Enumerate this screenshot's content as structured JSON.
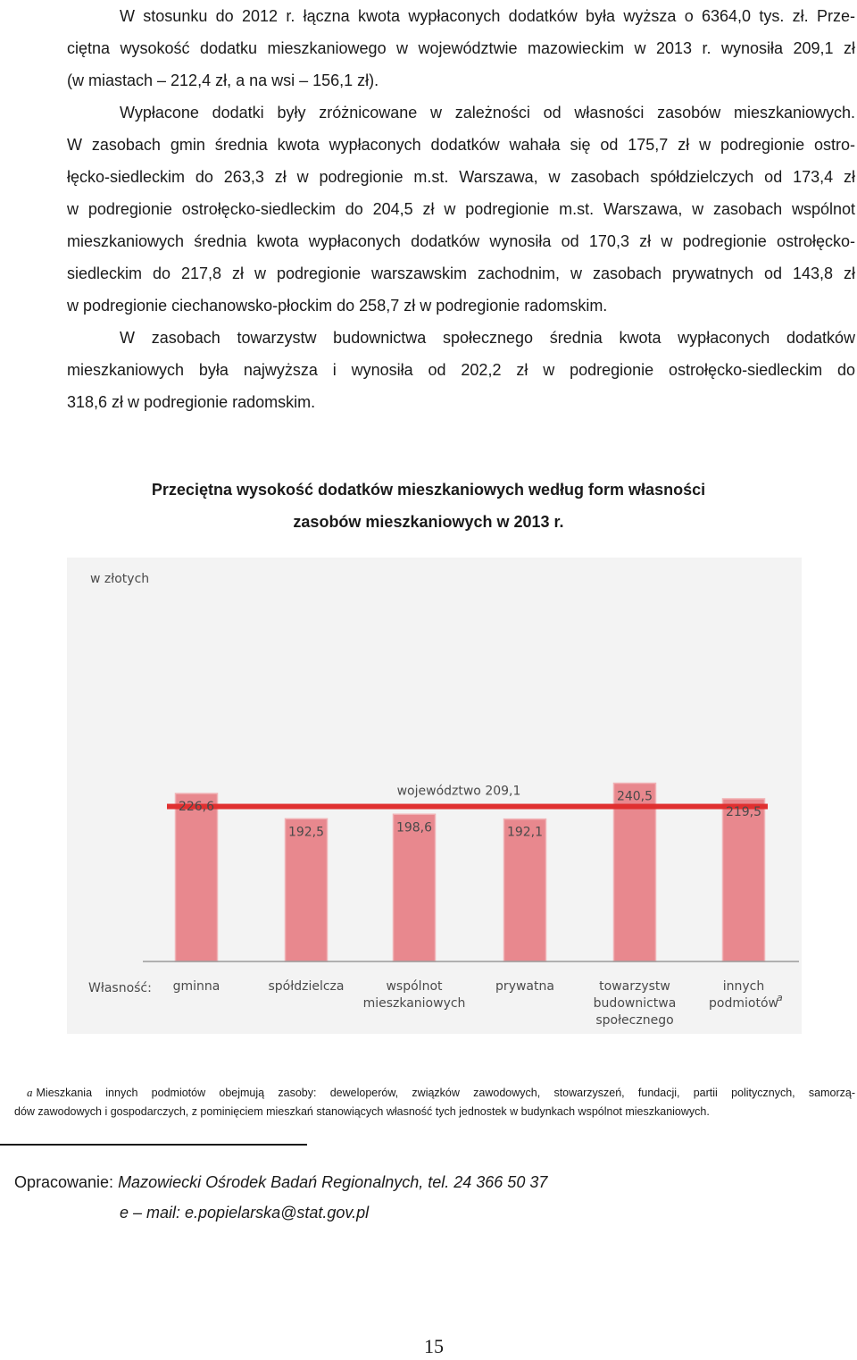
{
  "paragraphs": [
    {
      "lines": [
        "W stosunku do 2012 r. łączna kwota wypłaconych dodatków była wyższa o 6364,0 tys. zł. Prze-",
        "ciętna wysokość dodatku mieszkaniowego w województwie mazowieckim w 2013 r. wynosiła 209,1 zł",
        "(w miastach – 212,4 zł, a na wsi – 156,1 zł)."
      ]
    },
    {
      "lines": [
        "Wypłacone dodatki były zróżnicowane w zależności od własności zasobów mieszkaniowych.",
        "W zasobach gmin średnia kwota wypłaconych dodatków wahała się od 175,7 zł w podregionie ostro-",
        "łęcko-siedleckim do 263,3 zł w podregionie m.st. Warszawa, w zasobach spółdzielczych od 173,4 zł",
        "w podregionie ostrołęcko-siedleckim do 204,5 zł w podregionie m.st. Warszawa, w zasobach wspólnot",
        "mieszkaniowych średnia kwota wypłaconych dodatków wynosiła od 170,3 zł w podregionie ostrołęcko-",
        "siedleckim do 217,8 zł w podregionie warszawskim zachodnim, w zasobach prywatnych od 143,8 zł",
        "w podregionie ciechanowsko-płockim do 258,7 zł w podregionie radomskim."
      ]
    },
    {
      "lines": [
        "W zasobach towarzystw budownictwa społecznego średnia kwota wypłaconych dodatków",
        "mieszkaniowych była najwyższa i wynosiła od 202,2 zł w podregionie ostrołęcko-siedleckim do",
        "318,6 zł w podregionie radomskim."
      ]
    }
  ],
  "chart_title": {
    "line1": "Przeciętna wysokość dodatków mieszkaniowych według form własności",
    "line2": "zasobów mieszkaniowych w 2013 r."
  },
  "chart_data": {
    "type": "bar",
    "unit_label": "w złotych",
    "axis_label": "Własność:",
    "categories": [
      [
        "gminna"
      ],
      [
        "spółdzielcza"
      ],
      [
        "wspólnot",
        "mieszkaniowych"
      ],
      [
        "prywatna"
      ],
      [
        "towarzystw",
        "budownictwa",
        "społecznego"
      ],
      [
        "innych",
        "podmiotów"
      ]
    ],
    "category_marks": [
      "",
      "",
      "",
      "",
      "",
      "a"
    ],
    "values": [
      226.6,
      192.5,
      198.6,
      192.1,
      240.5,
      219.5
    ],
    "value_labels": [
      "226,6",
      "192,5",
      "198,6",
      "192,1",
      "240,5",
      "219,5"
    ],
    "reference_line": {
      "value": 209.1,
      "label": "województwo 209,1"
    },
    "ylim": [
      0,
      260
    ],
    "colors": {
      "bar": "#e8888e",
      "bar_edge": "#f1b3b6",
      "reference": "#e03030",
      "background": "#f3f3f3"
    }
  },
  "footnote": {
    "mark": "a",
    "lines": [
      "Mieszkania innych podmiotów obejmują zasoby: deweloperów, związków zawodowych, stowarzyszeń, fundacji, partii politycznych, samorzą-",
      "dów zawodowych i gospodarczych, z pominięciem mieszkań stanowiących własność tych jednostek w budynkach wspólnot mieszkaniowych."
    ]
  },
  "credits": {
    "prefix": "Opracowanie: ",
    "author": "Mazowiecki Ośrodek Badań Regionalnych, tel. 24 366 50 37",
    "email": "e – mail: e.popielarska@stat.gov.pl"
  },
  "page_number": "15"
}
